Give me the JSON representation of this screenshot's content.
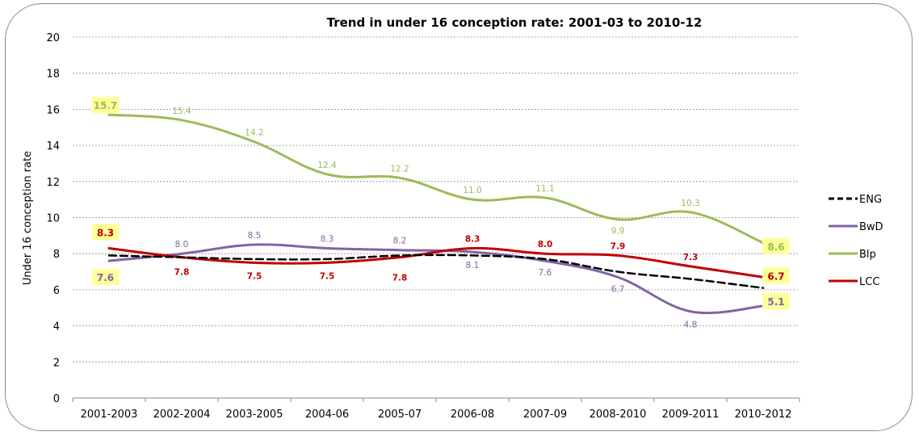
{
  "chart_data": {
    "type": "line",
    "title": "Trend in under 16 conception rate: 2001-03 to  2010-12",
    "xlabel": "",
    "ylabel": "Under 16  conception rate",
    "ylim": [
      0,
      20
    ],
    "yticks": [
      0,
      2,
      4,
      6,
      8,
      10,
      12,
      14,
      16,
      18,
      20
    ],
    "grid": true,
    "legend_position": "right",
    "categories": [
      "2001-2003",
      "2002-2004",
      "2003-2005",
      "2004-06",
      "2005-07",
      "2006-08",
      "2007-09",
      "2008-2010",
      "2009-2011",
      "2010-2012"
    ],
    "series": [
      {
        "name": "ENG",
        "color": "#000000",
        "dashed": true,
        "values": [
          7.9,
          7.8,
          7.7,
          7.7,
          7.9,
          7.9,
          7.7,
          7.0,
          6.6,
          6.1
        ],
        "labels": []
      },
      {
        "name": "BwD",
        "color": "#8064a2",
        "values": [
          7.6,
          8.0,
          8.5,
          8.3,
          8.2,
          8.1,
          7.6,
          6.7,
          4.8,
          5.1
        ],
        "labels": [
          "7.6",
          "8.0",
          "8.5",
          "8.3",
          "8.2",
          "8.1",
          "7.6",
          "6.7",
          "4.8",
          "5.1"
        ]
      },
      {
        "name": "Blp",
        "color": "#9bbb59",
        "values": [
          15.7,
          15.4,
          14.2,
          12.4,
          12.2,
          11.0,
          11.1,
          9.9,
          10.3,
          8.6
        ],
        "labels": [
          "15.7",
          "15.4",
          "14.2",
          "12.4",
          "12.2",
          "11.0",
          "11.1",
          "9.9",
          "10.3",
          "8.6"
        ]
      },
      {
        "name": "LCC",
        "color": "#c00000",
        "values": [
          8.3,
          7.8,
          7.5,
          7.5,
          7.8,
          8.3,
          8.0,
          7.9,
          7.3,
          6.7
        ],
        "labels": [
          "8.3",
          "7.8",
          "7.5",
          "7.5",
          "7.8",
          "8.3",
          "8.0",
          "7.9",
          "7.3",
          "6.7"
        ]
      }
    ]
  }
}
